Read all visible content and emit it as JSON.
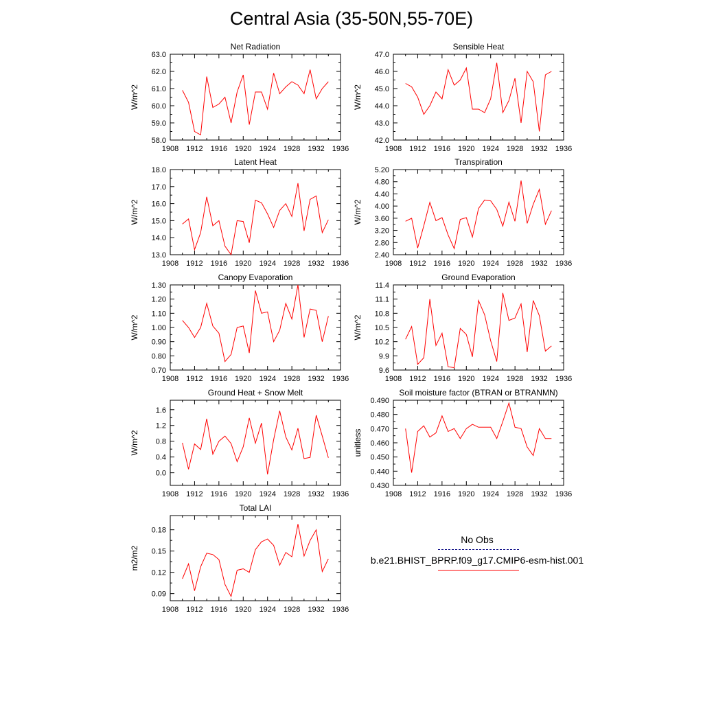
{
  "title": "Central Asia (35-50N,55-70E)",
  "x_ticks": [
    "1908",
    "1912",
    "1916",
    "1920",
    "1924",
    "1928",
    "1932",
    "1936"
  ],
  "colors": {
    "model": "#ff0000",
    "obs": "#000080",
    "axes": "#000000"
  },
  "chart_data": [
    {
      "id": "net-radiation",
      "type": "line",
      "title": "Net Radiation",
      "ylabel": "W/m^2",
      "ylim": [
        58.0,
        63.0
      ],
      "xlim": [
        1908,
        1936
      ],
      "yticks": [
        "58.0",
        "59.0",
        "60.0",
        "61.0",
        "62.0",
        "63.0"
      ],
      "x": [
        1910,
        1911,
        1912,
        1913,
        1914,
        1915,
        1916,
        1917,
        1918,
        1919,
        1920,
        1921,
        1922,
        1923,
        1924,
        1925,
        1926,
        1927,
        1928,
        1929,
        1930,
        1931,
        1932,
        1933,
        1934
      ],
      "series": [
        {
          "values": [
            60.9,
            60.2,
            58.5,
            58.3,
            61.7,
            59.9,
            60.1,
            60.5,
            59.0,
            60.8,
            61.8,
            58.9,
            60.8,
            60.8,
            59.8,
            61.9,
            60.7,
            61.1,
            61.4,
            61.2,
            60.7,
            62.1,
            60.4,
            61.0,
            61.4
          ]
        }
      ]
    },
    {
      "id": "sensible-heat",
      "type": "line",
      "title": "Sensible Heat",
      "ylabel": "W/m^2",
      "ylim": [
        42.0,
        47.0
      ],
      "xlim": [
        1908,
        1936
      ],
      "yticks": [
        "42.0",
        "43.0",
        "44.0",
        "45.0",
        "46.0",
        "47.0"
      ],
      "x": [
        1910,
        1911,
        1912,
        1913,
        1914,
        1915,
        1916,
        1917,
        1918,
        1919,
        1920,
        1921,
        1922,
        1923,
        1924,
        1925,
        1926,
        1927,
        1928,
        1929,
        1930,
        1931,
        1932,
        1933,
        1934
      ],
      "series": [
        {
          "values": [
            45.3,
            45.1,
            44.5,
            43.5,
            44.0,
            44.8,
            44.4,
            46.1,
            45.2,
            45.5,
            46.2,
            43.8,
            43.8,
            43.6,
            44.4,
            46.5,
            43.6,
            44.3,
            45.6,
            43.0,
            46.0,
            45.4,
            42.5,
            45.8,
            46.0
          ]
        }
      ]
    },
    {
      "id": "latent-heat",
      "type": "line",
      "title": "Latent Heat",
      "ylabel": "W/m^2",
      "ylim": [
        13.0,
        18.0
      ],
      "xlim": [
        1908,
        1936
      ],
      "yticks": [
        "13.0",
        "14.0",
        "15.0",
        "16.0",
        "17.0",
        "18.0"
      ],
      "x": [
        1910,
        1911,
        1912,
        1913,
        1914,
        1915,
        1916,
        1917,
        1918,
        1919,
        1920,
        1921,
        1922,
        1923,
        1924,
        1925,
        1926,
        1927,
        1928,
        1929,
        1930,
        1931,
        1932,
        1933,
        1934
      ],
      "series": [
        {
          "values": [
            14.8,
            15.1,
            13.3,
            14.3,
            16.4,
            14.7,
            15.0,
            13.5,
            13.0,
            15.0,
            14.95,
            13.7,
            16.2,
            16.05,
            15.4,
            14.6,
            15.6,
            16.0,
            15.25,
            17.2,
            14.4,
            16.25,
            16.45,
            14.3,
            15.05
          ]
        }
      ]
    },
    {
      "id": "transpiration",
      "type": "line",
      "title": "Transpiration",
      "ylabel": "W/m^2",
      "ylim": [
        2.4,
        5.2
      ],
      "xlim": [
        1908,
        1936
      ],
      "yticks": [
        "2.40",
        "2.80",
        "3.20",
        "3.60",
        "4.00",
        "4.40",
        "4.80",
        "5.20"
      ],
      "x": [
        1910,
        1911,
        1912,
        1913,
        1914,
        1915,
        1916,
        1917,
        1918,
        1919,
        1920,
        1921,
        1922,
        1923,
        1924,
        1925,
        1926,
        1927,
        1928,
        1929,
        1930,
        1931,
        1932,
        1933,
        1934
      ],
      "series": [
        {
          "values": [
            3.5,
            3.6,
            2.62,
            3.35,
            4.12,
            3.52,
            3.62,
            3.05,
            2.6,
            3.56,
            3.62,
            2.98,
            3.92,
            4.2,
            4.17,
            3.89,
            3.34,
            4.13,
            3.5,
            4.84,
            3.43,
            4.06,
            4.55,
            3.4,
            3.85
          ]
        }
      ]
    },
    {
      "id": "canopy-evaporation",
      "type": "line",
      "title": "Canopy Evaporation",
      "ylabel": "W/m^2",
      "ylim": [
        0.7,
        1.3
      ],
      "xlim": [
        1908,
        1936
      ],
      "yticks": [
        "0.70",
        "0.80",
        "0.90",
        "1.00",
        "1.10",
        "1.20",
        "1.30"
      ],
      "x": [
        1910,
        1911,
        1912,
        1913,
        1914,
        1915,
        1916,
        1917,
        1918,
        1919,
        1920,
        1921,
        1922,
        1923,
        1924,
        1925,
        1926,
        1927,
        1928,
        1929,
        1930,
        1931,
        1932,
        1933,
        1934
      ],
      "series": [
        {
          "values": [
            1.05,
            1.0,
            0.93,
            1.0,
            1.17,
            1.01,
            0.96,
            0.76,
            0.81,
            1.0,
            1.01,
            0.82,
            1.26,
            1.1,
            1.11,
            0.9,
            0.98,
            1.17,
            1.06,
            1.3,
            0.93,
            1.13,
            1.12,
            0.9,
            1.08
          ]
        }
      ]
    },
    {
      "id": "ground-evaporation",
      "type": "line",
      "title": "Ground Evaporation",
      "ylabel": "W/m^2",
      "ylim": [
        9.6,
        11.4
      ],
      "xlim": [
        1908,
        1936
      ],
      "yticks": [
        "9.6",
        "9.9",
        "10.2",
        "10.5",
        "10.8",
        "11.1",
        "11.4"
      ],
      "x": [
        1910,
        1911,
        1912,
        1913,
        1914,
        1915,
        1916,
        1917,
        1918,
        1919,
        1920,
        1921,
        1922,
        1923,
        1924,
        1925,
        1926,
        1927,
        1928,
        1929,
        1930,
        1931,
        1932,
        1933,
        1934
      ],
      "series": [
        {
          "values": [
            10.25,
            10.52,
            9.72,
            9.86,
            11.1,
            10.12,
            10.38,
            9.67,
            9.65,
            10.48,
            10.35,
            9.88,
            11.07,
            10.77,
            10.22,
            9.78,
            11.23,
            10.65,
            10.7,
            11.0,
            9.98,
            11.07,
            10.75,
            10.0,
            10.11
          ]
        }
      ]
    },
    {
      "id": "ground-heat-snow-melt",
      "type": "line",
      "title": "Ground Heat + Snow Melt",
      "ylabel": "W/m^2",
      "ylim": [
        -0.32,
        1.84
      ],
      "xlim": [
        1908,
        1936
      ],
      "yticks": [
        "0.0",
        "0.4",
        "0.8",
        "1.2",
        "1.6"
      ],
      "ytick_values": [
        0.0,
        0.4,
        0.8,
        1.2,
        1.6
      ],
      "x": [
        1910,
        1911,
        1912,
        1913,
        1914,
        1915,
        1916,
        1917,
        1918,
        1919,
        1920,
        1921,
        1922,
        1923,
        1924,
        1925,
        1926,
        1927,
        1928,
        1929,
        1930,
        1931,
        1932,
        1933,
        1934
      ],
      "series": [
        {
          "values": [
            0.76,
            0.09,
            0.73,
            0.59,
            1.37,
            0.47,
            0.8,
            0.93,
            0.74,
            0.28,
            0.66,
            1.39,
            0.75,
            1.26,
            -0.04,
            0.84,
            1.57,
            0.91,
            0.58,
            1.13,
            0.36,
            0.39,
            1.46,
            0.93,
            0.38
          ]
        }
      ]
    },
    {
      "id": "soil-moisture-factor",
      "type": "line",
      "title": "Soil moisture factor (BTRAN or BTRANMN)",
      "ylabel": "unitless",
      "ylim": [
        0.43,
        0.49
      ],
      "xlim": [
        1908,
        1936
      ],
      "yticks": [
        "0.430",
        "0.440",
        "0.450",
        "0.460",
        "0.470",
        "0.480",
        "0.490"
      ],
      "x": [
        1910,
        1911,
        1912,
        1913,
        1914,
        1915,
        1916,
        1917,
        1918,
        1919,
        1920,
        1921,
        1922,
        1923,
        1924,
        1925,
        1926,
        1927,
        1928,
        1929,
        1930,
        1931,
        1932,
        1933,
        1934
      ],
      "series": [
        {
          "values": [
            0.47,
            0.439,
            0.468,
            0.472,
            0.464,
            0.467,
            0.479,
            0.468,
            0.47,
            0.463,
            0.47,
            0.473,
            0.471,
            0.471,
            0.471,
            0.463,
            0.475,
            0.488,
            0.471,
            0.47,
            0.457,
            0.451,
            0.47,
            0.463,
            0.463
          ]
        }
      ]
    },
    {
      "id": "total-lai",
      "type": "line",
      "title": "Total LAI",
      "ylabel": "m2/m2",
      "ylim": [
        0.08,
        0.2
      ],
      "xlim": [
        1908,
        1936
      ],
      "yticks": [
        "0.09",
        "0.12",
        "0.15",
        "0.18"
      ],
      "ytick_values": [
        0.09,
        0.12,
        0.15,
        0.18
      ],
      "x": [
        1910,
        1911,
        1912,
        1913,
        1914,
        1915,
        1916,
        1917,
        1918,
        1919,
        1920,
        1921,
        1922,
        1923,
        1924,
        1925,
        1926,
        1927,
        1928,
        1929,
        1930,
        1931,
        1932,
        1933,
        1934
      ],
      "series": [
        {
          "values": [
            0.111,
            0.132,
            0.094,
            0.128,
            0.147,
            0.145,
            0.138,
            0.103,
            0.086,
            0.123,
            0.125,
            0.12,
            0.152,
            0.163,
            0.167,
            0.158,
            0.13,
            0.148,
            0.142,
            0.188,
            0.143,
            0.165,
            0.18,
            0.121,
            0.139
          ]
        }
      ]
    }
  ],
  "legend": {
    "obs_label": "No Obs",
    "model_label": "b.e21.BHIST_BPRP.f09_g17.CMIP6-esm-hist.001"
  }
}
